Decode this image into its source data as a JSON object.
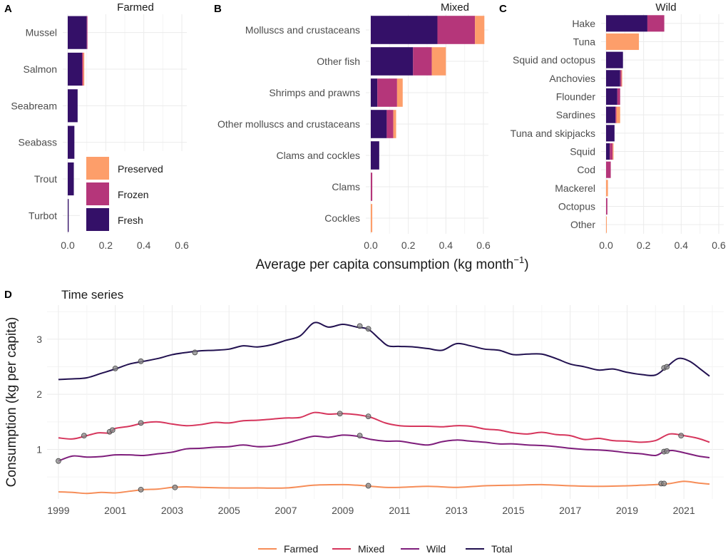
{
  "colors": {
    "Preserved": "#fd9e6a",
    "Frozen": "#b5367a",
    "Fresh": "#341068",
    "Farmed": "#f68d58",
    "Mixed": "#d6355c",
    "Wild": "#7e1d7b",
    "Total": "#221150"
  },
  "shared_xlabel": "Average per capita consumption (kg month",
  "shared_xlabel_sup": "−1",
  "shared_xlabel_close": ")",
  "chart_data": [
    {
      "id": "A",
      "letter": "A",
      "type": "bar",
      "orientation": "horizontal",
      "stacked": true,
      "title": "Farmed",
      "xlim": [
        0,
        0.6
      ],
      "xticks": [
        "0.0",
        "0.2",
        "0.4",
        "0.6"
      ],
      "categories": [
        "Mussel",
        "Salmon",
        "Seabream",
        "Seabass",
        "Trout",
        "Turbot"
      ],
      "series": [
        {
          "name": "Fresh",
          "values": [
            0.1,
            0.075,
            0.052,
            0.035,
            0.032,
            0.005
          ]
        },
        {
          "name": "Frozen",
          "values": [
            0.003,
            0.006,
            0,
            0,
            0,
            0
          ]
        },
        {
          "name": "Preserved",
          "values": [
            0,
            0.006,
            0,
            0,
            0,
            0
          ]
        }
      ],
      "legend": {
        "title": "",
        "entries": [
          "Preserved",
          "Frozen",
          "Fresh"
        ]
      }
    },
    {
      "id": "B",
      "letter": "B",
      "type": "bar",
      "orientation": "horizontal",
      "stacked": true,
      "title": "Mixed",
      "xlim": [
        0,
        0.6
      ],
      "xticks": [
        "0.0",
        "0.2",
        "0.4",
        "0.6"
      ],
      "categories": [
        "Molluscs and crustaceans",
        "Other fish",
        "Shrimps and prawns",
        "Other molluscs and crustaceans",
        "Clams and cockles",
        "Clams",
        "Cockles"
      ],
      "series": [
        {
          "name": "Fresh",
          "values": [
            0.355,
            0.225,
            0.035,
            0.085,
            0.045,
            0.0,
            0.0
          ]
        },
        {
          "name": "Frozen",
          "values": [
            0.2,
            0.1,
            0.105,
            0.035,
            0,
            0.008,
            0
          ]
        },
        {
          "name": "Preserved",
          "values": [
            0.05,
            0.075,
            0.03,
            0.015,
            0,
            0,
            0.008
          ]
        }
      ]
    },
    {
      "id": "C",
      "letter": "C",
      "type": "bar",
      "orientation": "horizontal",
      "stacked": true,
      "title": "Wild",
      "xlim": [
        0,
        0.6
      ],
      "xticks": [
        "0.0",
        "0.2",
        "0.4",
        "0.6"
      ],
      "categories": [
        "Hake",
        "Tuna",
        "Squid and octopus",
        "Anchovies",
        "Flounder",
        "Sardines",
        "Tuna and skipjacks",
        "Squid",
        "Cod",
        "Mackerel",
        "Octopus",
        "Other"
      ],
      "series": [
        {
          "name": "Fresh",
          "values": [
            0.22,
            0,
            0.09,
            0.075,
            0.06,
            0.05,
            0.045,
            0.02,
            0.0,
            0.0,
            0.0,
            0.0
          ]
        },
        {
          "name": "Frozen",
          "values": [
            0.09,
            0,
            0,
            0.007,
            0.015,
            0.005,
            0,
            0.015,
            0.025,
            0,
            0.007,
            0
          ]
        },
        {
          "name": "Preserved",
          "values": [
            0,
            0.175,
            0,
            0.004,
            0,
            0.02,
            0,
            0.005,
            0,
            0.01,
            0,
            0.004
          ]
        }
      ]
    },
    {
      "id": "D",
      "letter": "D",
      "type": "line",
      "title": "Time series",
      "ylabel": "Consumption (kg per capita)",
      "xlim": [
        1998.6,
        2022.4
      ],
      "ylim": [
        0.1,
        3.62
      ],
      "xticks": [
        "1999",
        "2001",
        "2003",
        "2005",
        "2007",
        "2009",
        "2011",
        "2013",
        "2015",
        "2017",
        "2019",
        "2021"
      ],
      "yticks": [
        "1",
        "2",
        "3"
      ],
      "legend": {
        "placement": "bottom",
        "entries": [
          "Farmed",
          "Mixed",
          "Wild",
          "Total"
        ]
      },
      "series": [
        {
          "name": "Farmed",
          "x": [
            1999,
            1999.5,
            2000,
            2000.5,
            2001,
            2001.5,
            2002,
            2002.5,
            2003,
            2003.5,
            2004,
            2005,
            2006,
            2007,
            2008,
            2009,
            2009.5,
            2010,
            2010.5,
            2011,
            2012,
            2013,
            2014,
            2015,
            2016,
            2017,
            2018,
            2019,
            2019.5,
            2020,
            2020.5,
            2021,
            2021.5,
            2021.9
          ],
          "y": [
            0.23,
            0.22,
            0.2,
            0.22,
            0.21,
            0.24,
            0.27,
            0.28,
            0.31,
            0.32,
            0.31,
            0.3,
            0.3,
            0.3,
            0.35,
            0.36,
            0.35,
            0.33,
            0.31,
            0.31,
            0.33,
            0.31,
            0.34,
            0.35,
            0.36,
            0.34,
            0.33,
            0.34,
            0.35,
            0.36,
            0.38,
            0.42,
            0.39,
            0.37
          ],
          "markers": [
            [
              2001.9,
              0.27
            ],
            [
              2003.1,
              0.31
            ],
            [
              2009.9,
              0.34
            ],
            [
              2020.2,
              0.38
            ],
            [
              2020.3,
              0.38
            ]
          ]
        },
        {
          "name": "Mixed",
          "x": [
            1999,
            1999.5,
            2000,
            2000.4,
            2000.8,
            2001,
            2001.5,
            2002,
            2002.5,
            2003,
            2003.5,
            2004,
            2004.5,
            2005,
            2005.5,
            2006,
            2006.5,
            2007,
            2007.5,
            2008,
            2008.5,
            2009,
            2009.5,
            2010,
            2010.5,
            2011,
            2011.5,
            2012,
            2012.5,
            2013,
            2013.5,
            2014,
            2014.5,
            2015,
            2015.5,
            2016,
            2016.5,
            2017,
            2017.5,
            2018,
            2018.5,
            2019,
            2019.5,
            2020,
            2020.5,
            2021,
            2021.5,
            2021.9
          ],
          "y": [
            1.21,
            1.19,
            1.25,
            1.3,
            1.3,
            1.38,
            1.42,
            1.48,
            1.5,
            1.46,
            1.43,
            1.45,
            1.49,
            1.48,
            1.52,
            1.53,
            1.55,
            1.57,
            1.58,
            1.67,
            1.64,
            1.65,
            1.63,
            1.58,
            1.48,
            1.43,
            1.42,
            1.42,
            1.41,
            1.43,
            1.42,
            1.37,
            1.35,
            1.3,
            1.28,
            1.31,
            1.27,
            1.25,
            1.18,
            1.2,
            1.16,
            1.15,
            1.13,
            1.16,
            1.28,
            1.25,
            1.2,
            1.13
          ],
          "markers": [
            [
              1999.9,
              1.25
            ],
            [
              2000.8,
              1.32
            ],
            [
              2000.9,
              1.35
            ],
            [
              2001.9,
              1.48
            ],
            [
              2008.9,
              1.65
            ],
            [
              2009.9,
              1.6
            ],
            [
              2020.9,
              1.25
            ]
          ]
        },
        {
          "name": "Wild",
          "x": [
            1999,
            1999.5,
            2000,
            2000.5,
            2001,
            2001.5,
            2002,
            2002.5,
            2003,
            2003.5,
            2004,
            2004.5,
            2005,
            2005.5,
            2006,
            2006.5,
            2007,
            2007.5,
            2008,
            2008.5,
            2009,
            2009.5,
            2010,
            2010.5,
            2011,
            2011.5,
            2012,
            2012.5,
            2013,
            2013.5,
            2014,
            2014.5,
            2015,
            2015.5,
            2016,
            2016.5,
            2017,
            2017.5,
            2018,
            2018.5,
            2019,
            2019.5,
            2020,
            2020.3,
            2020.6,
            2021,
            2021.5,
            2021.9
          ],
          "y": [
            0.79,
            0.88,
            0.86,
            0.87,
            0.9,
            0.9,
            0.89,
            0.92,
            0.95,
            1.01,
            1.02,
            1.04,
            1.05,
            1.08,
            1.05,
            1.06,
            1.11,
            1.18,
            1.24,
            1.22,
            1.26,
            1.24,
            1.18,
            1.15,
            1.15,
            1.11,
            1.08,
            1.14,
            1.17,
            1.15,
            1.13,
            1.1,
            1.1,
            1.08,
            1.07,
            1.05,
            1.02,
            1.0,
            0.99,
            0.97,
            0.94,
            0.92,
            0.89,
            0.96,
            0.98,
            0.94,
            0.88,
            0.85
          ],
          "markers": [
            [
              1999,
              0.79
            ],
            [
              2009.6,
              1.25
            ],
            [
              2020.3,
              0.96
            ],
            [
              2020.4,
              0.97
            ]
          ]
        },
        {
          "name": "Total",
          "x": [
            1999,
            1999.5,
            2000,
            2000.5,
            2001,
            2001.5,
            2002,
            2002.5,
            2003,
            2003.5,
            2004,
            2004.5,
            2005,
            2005.5,
            2006,
            2006.5,
            2007,
            2007.5,
            2008,
            2008.5,
            2009,
            2009.5,
            2009.9,
            2010.3,
            2010.6,
            2011,
            2011.5,
            2012,
            2012.5,
            2013,
            2013.5,
            2014,
            2014.5,
            2015,
            2015.5,
            2016,
            2016.5,
            2017,
            2017.5,
            2018,
            2018.5,
            2019,
            2019.5,
            2020,
            2020.4,
            2020.8,
            2021.2,
            2021.6,
            2021.9
          ],
          "y": [
            2.27,
            2.28,
            2.3,
            2.38,
            2.46,
            2.55,
            2.6,
            2.65,
            2.72,
            2.76,
            2.79,
            2.8,
            2.82,
            2.88,
            2.86,
            2.9,
            2.98,
            3.06,
            3.3,
            3.22,
            3.27,
            3.22,
            3.18,
            3.0,
            2.88,
            2.87,
            2.86,
            2.83,
            2.8,
            2.92,
            2.88,
            2.82,
            2.8,
            2.72,
            2.73,
            2.73,
            2.65,
            2.55,
            2.5,
            2.44,
            2.46,
            2.4,
            2.36,
            2.35,
            2.5,
            2.65,
            2.6,
            2.45,
            2.33
          ],
          "markers": [
            [
              2001,
              2.47
            ],
            [
              2001.9,
              2.6
            ],
            [
              2003.8,
              2.76
            ],
            [
              2009.6,
              3.24
            ],
            [
              2009.9,
              3.19
            ],
            [
              2020.3,
              2.48
            ],
            [
              2020.4,
              2.5
            ]
          ]
        }
      ]
    }
  ]
}
